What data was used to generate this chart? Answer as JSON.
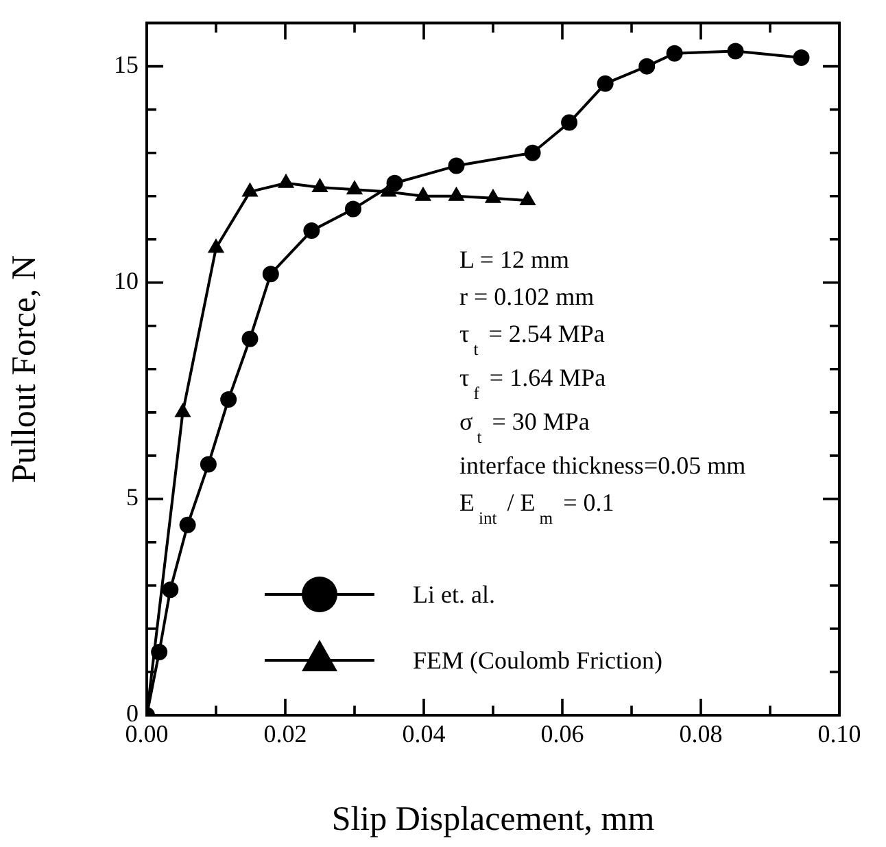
{
  "chart_data": {
    "type": "line",
    "xlabel": "Slip Displacement, mm",
    "ylabel": "Pullout Force, N",
    "xlim": [
      0,
      0.1
    ],
    "ylim": [
      0,
      16
    ],
    "xticks": [
      {
        "value": 0,
        "label": "0.00"
      },
      {
        "value": 0.01,
        "label": null
      },
      0.02,
      {
        "value": 0.03,
        "label": null
      },
      0.04,
      {
        "value": 0.05,
        "label": null
      },
      0.06,
      {
        "value": 0.07,
        "label": null
      },
      0.08,
      {
        "value": 0.09,
        "label": null
      },
      {
        "value": 0.1,
        "label": "0.10"
      }
    ],
    "yticks": [
      0,
      {
        "value": 1,
        "label": null
      },
      {
        "value": 2,
        "label": null
      },
      {
        "value": 3,
        "label": null
      },
      {
        "value": 4,
        "label": null
      },
      5,
      {
        "value": 6,
        "label": null
      },
      {
        "value": 7,
        "label": null
      },
      {
        "value": 8,
        "label": null
      },
      {
        "value": 9,
        "label": null
      },
      10,
      {
        "value": 11,
        "label": null
      },
      {
        "value": 12,
        "label": null
      },
      {
        "value": 13,
        "label": null
      },
      {
        "value": 14,
        "label": null
      },
      15
    ],
    "grid": false,
    "legend": "bottom left",
    "line_style": "solid",
    "series": [
      {
        "name": "Li et. al.",
        "color": "#000000",
        "marker": "circle",
        "x": [
          0,
          0.0018,
          0.0034,
          0.0059,
          0.0089,
          0.0118,
          0.0149,
          0.0179,
          0.0238,
          0.0298,
          0.0358,
          0.0447,
          0.0557,
          0.061,
          0.0662,
          0.0722,
          0.0762,
          0.085,
          0.0945
        ],
        "values": [
          0,
          1.46,
          2.9,
          4.4,
          5.8,
          7.3,
          8.7,
          10.2,
          11.2,
          11.7,
          12.3,
          12.7,
          13.0,
          13.7,
          14.6,
          15.0,
          15.3,
          15.35,
          15.2
        ]
      },
      {
        "name": "FEM (Coulomb Friction)",
        "color": "#000000",
        "marker": "triangle",
        "x": [
          0,
          0.0052,
          0.01,
          0.0149,
          0.0201,
          0.025,
          0.03,
          0.0349,
          0.0399,
          0.0447,
          0.05,
          0.055
        ],
        "values": [
          0,
          7.0,
          10.8,
          12.1,
          12.3,
          12.2,
          12.15,
          12.1,
          12.0,
          12.0,
          11.95,
          11.9
        ]
      }
    ],
    "annotations": [
      "L = 12 mm",
      "r = 0.102 mm",
      "τ$_{t}$ = 2.54 MPa",
      "τ$_{f}$ = 1.64 MPa",
      "σ$_{t}$ = 30 MPa",
      "interface thickness=0.05 mm",
      "E$_{int}$ / E$_{m}$ = 0.1"
    ]
  }
}
